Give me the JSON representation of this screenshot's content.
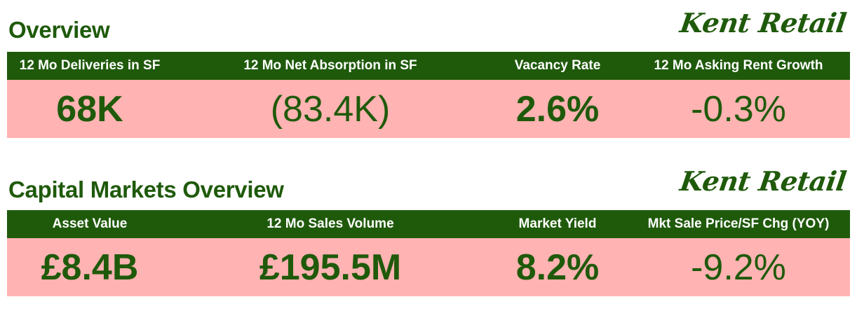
{
  "sections": [
    {
      "title": "Overview",
      "brand": "Kent Retail",
      "columns": [
        {
          "header": "12 Mo Deliveries in SF",
          "value": "68K"
        },
        {
          "header": "12 Mo Net Absorption in SF",
          "value": "(83.4K)"
        },
        {
          "header": "Vacancy Rate",
          "value": "2.6%"
        },
        {
          "header": "12 Mo Asking Rent Growth",
          "value": "-0.3%"
        }
      ]
    },
    {
      "title": "Capital Markets Overview",
      "brand": "Kent Retail",
      "columns": [
        {
          "header": "Asset Value",
          "value": "£8.4B"
        },
        {
          "header": "12 Mo Sales Volume",
          "value": "£195.5M"
        },
        {
          "header": "Market Yield",
          "value": "8.2%"
        },
        {
          "header": "Mkt Sale Price/SF Chg (YOY)",
          "value": "-9.2%"
        }
      ]
    }
  ],
  "colors": {
    "brand_green": "#1f5a0b",
    "value_background": "#ffb3b3",
    "header_text": "#ffffff"
  }
}
